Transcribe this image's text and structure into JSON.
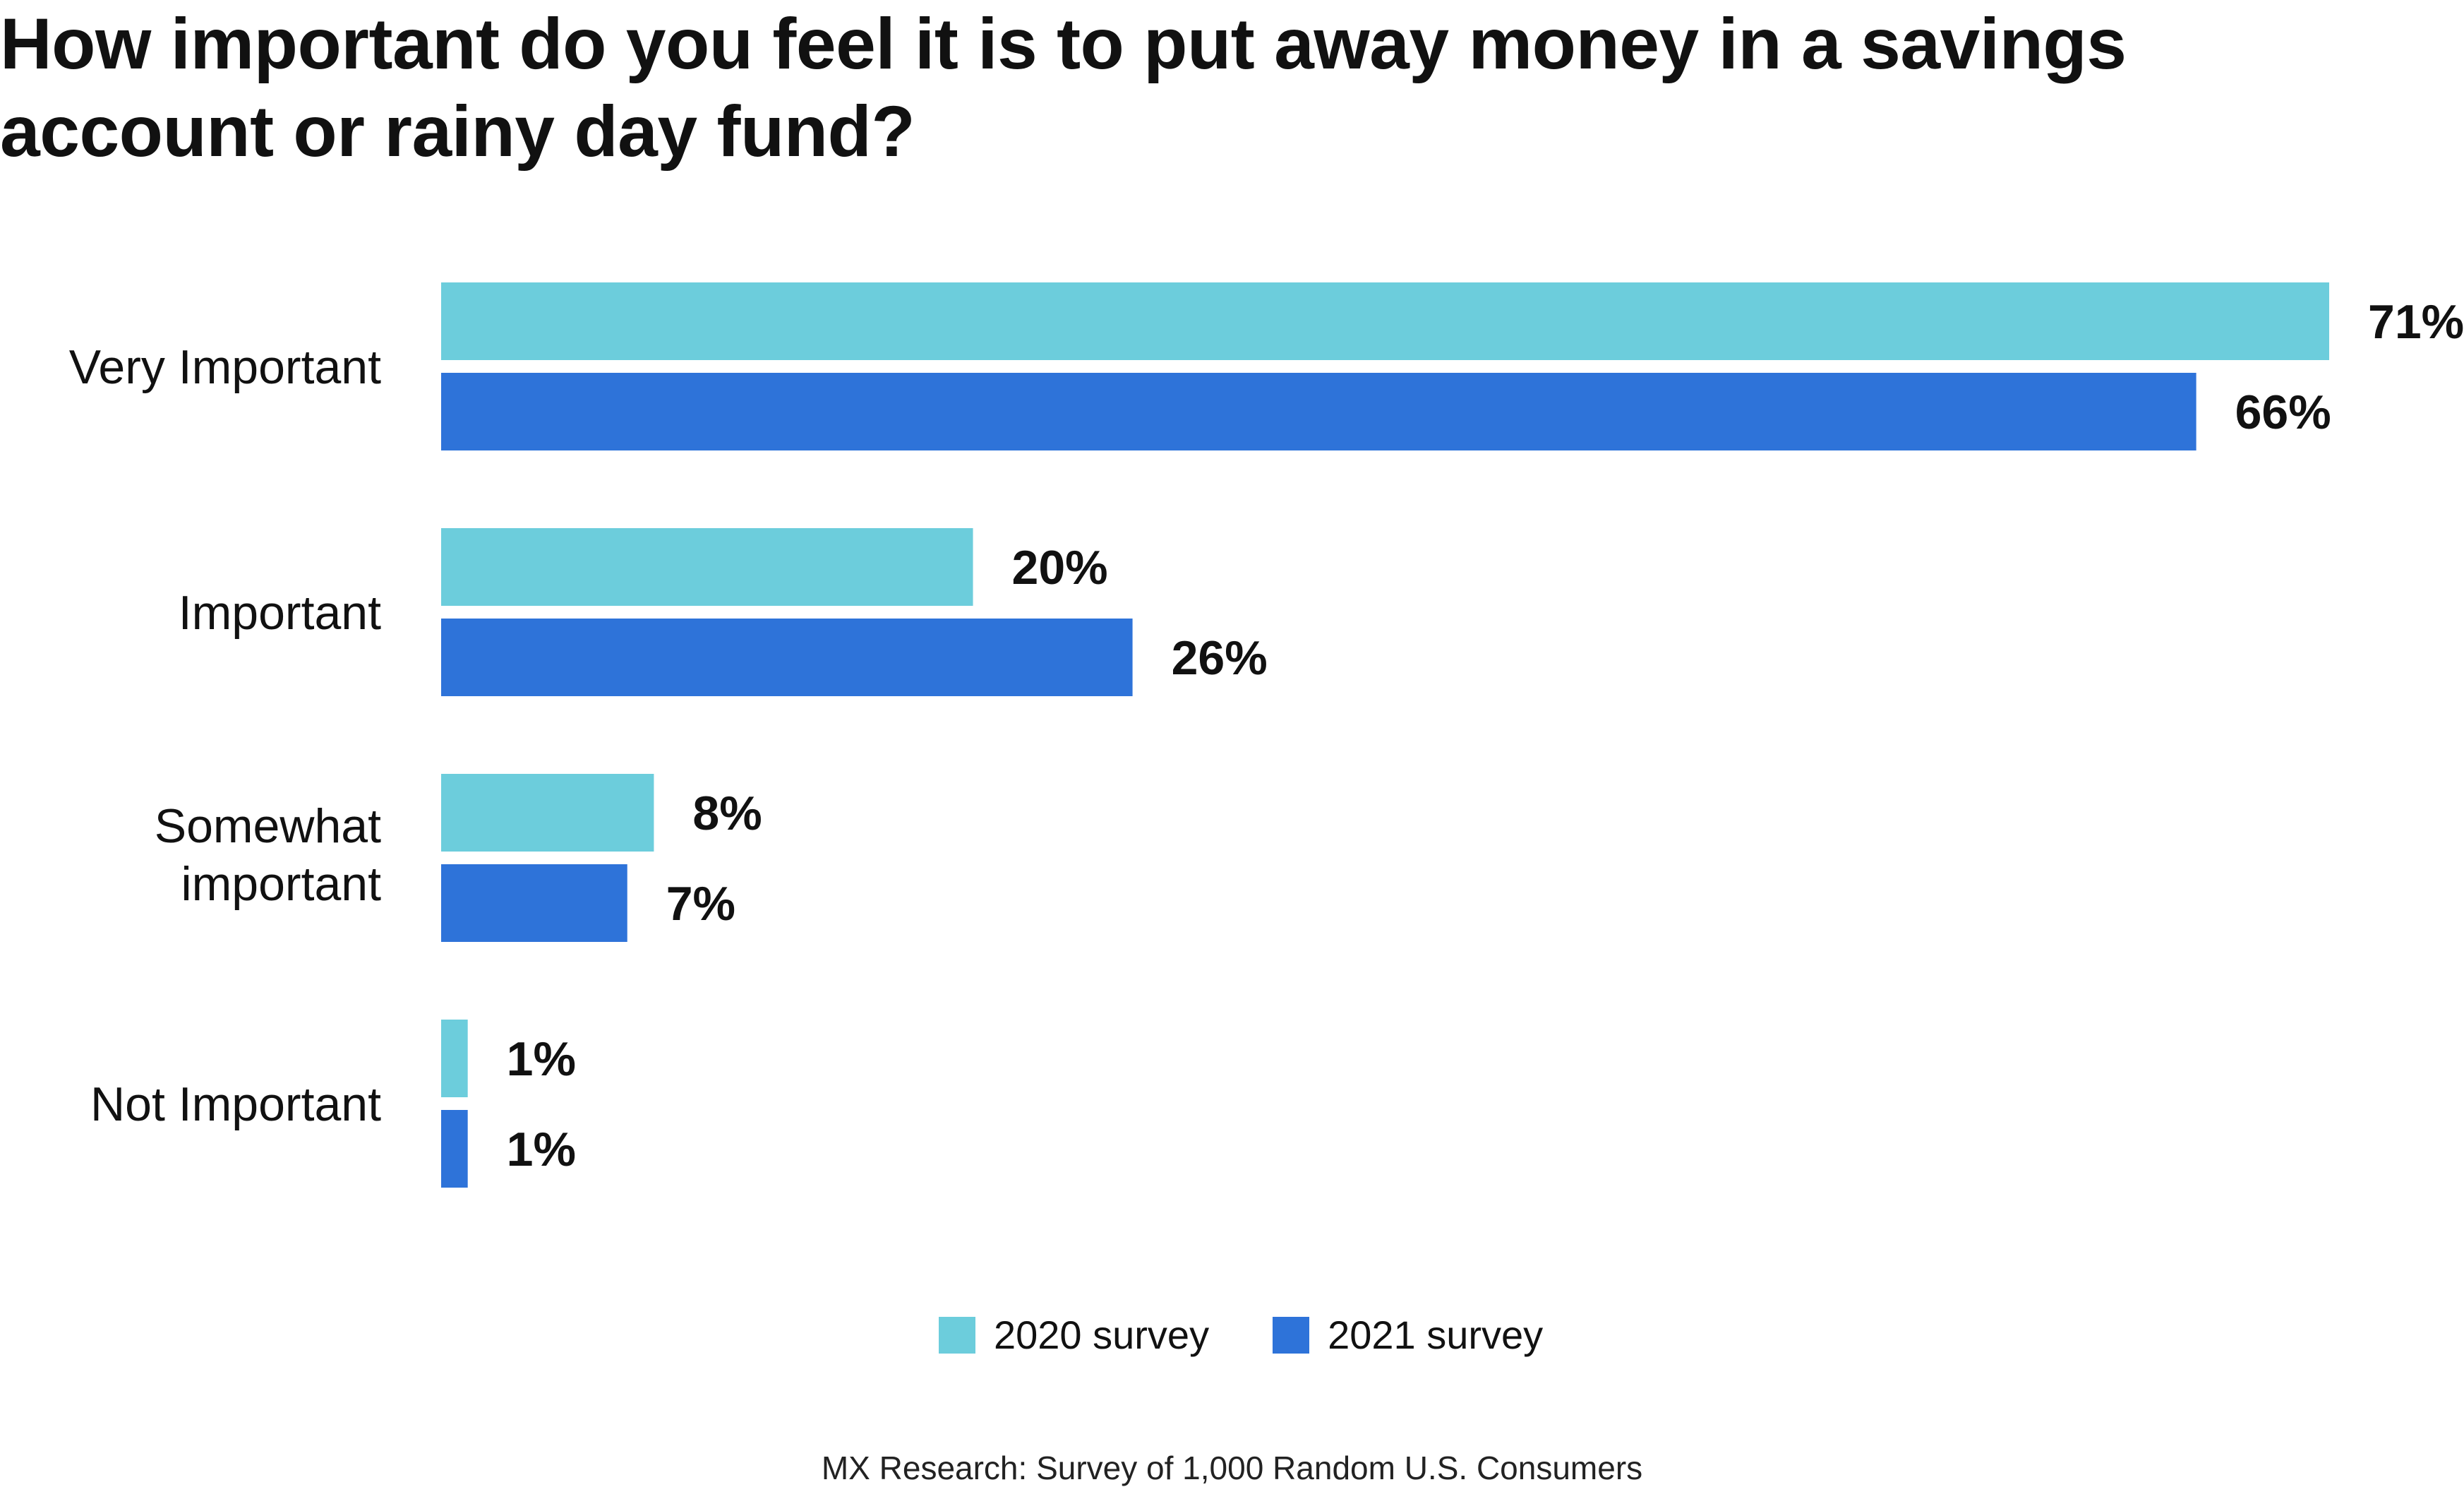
{
  "chart_data": {
    "type": "bar",
    "orientation": "horizontal",
    "title": "How important do you feel it is to put away money in a savings account or rainy day fund?",
    "categories": [
      "Very Important",
      "Important",
      "Somewhat important",
      "Not Important"
    ],
    "series": [
      {
        "name": "2020 survey",
        "color": "#6CCDDC",
        "values": [
          71,
          20,
          8,
          1
        ],
        "labels": [
          "71%",
          "20%",
          "8%",
          "1%"
        ]
      },
      {
        "name": "2021 survey",
        "color": "#2E73D9",
        "values": [
          66,
          26,
          7,
          1
        ],
        "labels": [
          "66%",
          "26%",
          "7%",
          "1%"
        ]
      }
    ],
    "xlim": [
      0,
      71
    ],
    "grid": false,
    "legend_position": "bottom-center",
    "source": "MX Research: Survey of 1,000 Random U.S. Consumers"
  }
}
